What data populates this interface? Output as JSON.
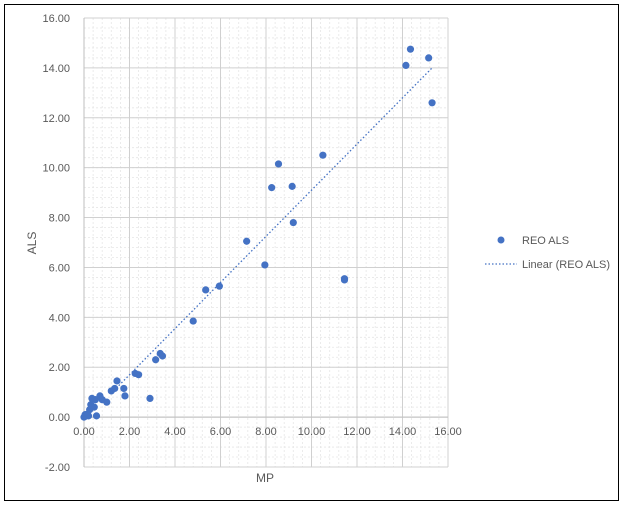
{
  "chart_data": {
    "type": "scatter",
    "title": "",
    "xlabel": "MP",
    "ylabel": "ALS",
    "xlim": [
      0,
      16
    ],
    "ylim": [
      -2,
      16
    ],
    "x_ticks": [
      0,
      2,
      4,
      6,
      8,
      10,
      12,
      14,
      16
    ],
    "y_ticks": [
      -2,
      0,
      2,
      4,
      6,
      8,
      10,
      12,
      14,
      16
    ],
    "x_tick_labels": [
      "0.00",
      "2.00",
      "4.00",
      "6.00",
      "8.00",
      "10.00",
      "12.00",
      "14.00",
      "16.00"
    ],
    "y_tick_labels": [
      "-2.00",
      "0.00",
      "2.00",
      "4.00",
      "6.00",
      "8.00",
      "10.00",
      "12.00",
      "14.00",
      "16.00"
    ],
    "grid": true,
    "minor_grid": true,
    "legend_position": "right",
    "series": [
      {
        "name": "REO ALS",
        "color": "#4472C4",
        "points": [
          [
            0.0,
            0.0
          ],
          [
            0.05,
            0.1
          ],
          [
            0.1,
            0.05
          ],
          [
            0.15,
            0.12
          ],
          [
            0.2,
            0.05
          ],
          [
            0.25,
            0.3
          ],
          [
            0.3,
            0.5
          ],
          [
            0.35,
            0.75
          ],
          [
            0.45,
            0.4
          ],
          [
            0.5,
            0.7
          ],
          [
            0.55,
            0.05
          ],
          [
            0.7,
            0.85
          ],
          [
            0.8,
            0.7
          ],
          [
            1.0,
            0.6
          ],
          [
            1.2,
            1.05
          ],
          [
            1.35,
            1.15
          ],
          [
            1.45,
            1.45
          ],
          [
            1.75,
            1.15
          ],
          [
            1.8,
            0.85
          ],
          [
            2.25,
            1.75
          ],
          [
            2.4,
            1.7
          ],
          [
            2.9,
            0.75
          ],
          [
            3.15,
            2.3
          ],
          [
            3.35,
            2.55
          ],
          [
            3.45,
            2.45
          ],
          [
            4.8,
            3.85
          ],
          [
            5.35,
            5.1
          ],
          [
            5.95,
            5.25
          ],
          [
            7.15,
            7.05
          ],
          [
            7.95,
            6.1
          ],
          [
            8.25,
            9.2
          ],
          [
            8.55,
            10.15
          ],
          [
            9.15,
            9.25
          ],
          [
            9.2,
            7.8
          ],
          [
            10.5,
            10.5
          ],
          [
            11.45,
            5.55
          ],
          [
            11.45,
            5.5
          ],
          [
            14.15,
            14.1
          ],
          [
            14.35,
            14.75
          ],
          [
            15.15,
            14.4
          ],
          [
            15.3,
            12.6
          ]
        ]
      },
      {
        "name": "Linear (REO ALS)",
        "color": "#4472C4",
        "style": "dotted",
        "line": [
          [
            1.3,
            1.05
          ],
          [
            15.3,
            14.0
          ]
        ]
      }
    ]
  }
}
